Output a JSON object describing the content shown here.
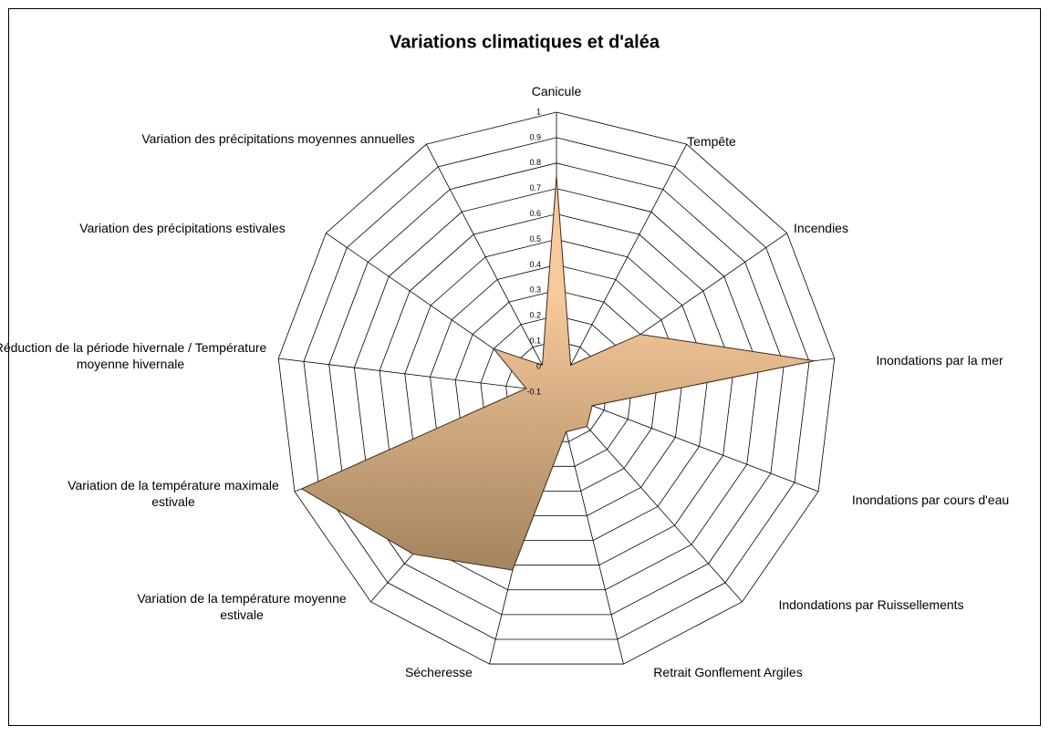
{
  "chart_data": {
    "type": "radar",
    "title": "Variations climatiques et d'aléa",
    "categories": [
      "Canicule",
      "Tempête",
      "Incendies",
      "Inondations par la mer",
      "Inondations par cours d'eau",
      "Indondations par Ruissellements",
      "Retrait Gonflement Argiles",
      "Sécheresse",
      "Variation de la température moyenne estivale",
      "Variation de la température maximale estivale",
      "Réduction de la période hivernale / Température moyenne hivernale",
      "Variation des précipitations estivales",
      "Variation des précipitations moyennes annuelles"
    ],
    "values": [
      0.75,
      0.02,
      0.3,
      0.92,
      0.05,
      0.08,
      0.06,
      0.62,
      0.75,
      0.97,
      0.02,
      0.2,
      0.02
    ],
    "color": "#f8c99b",
    "ylim": [
      -0.1,
      1
    ],
    "yticks": [
      -0.1,
      0,
      0.1,
      0.2,
      0.3,
      0.4,
      0.5,
      0.6,
      0.7,
      0.8,
      0.9,
      1
    ],
    "grid": true
  }
}
